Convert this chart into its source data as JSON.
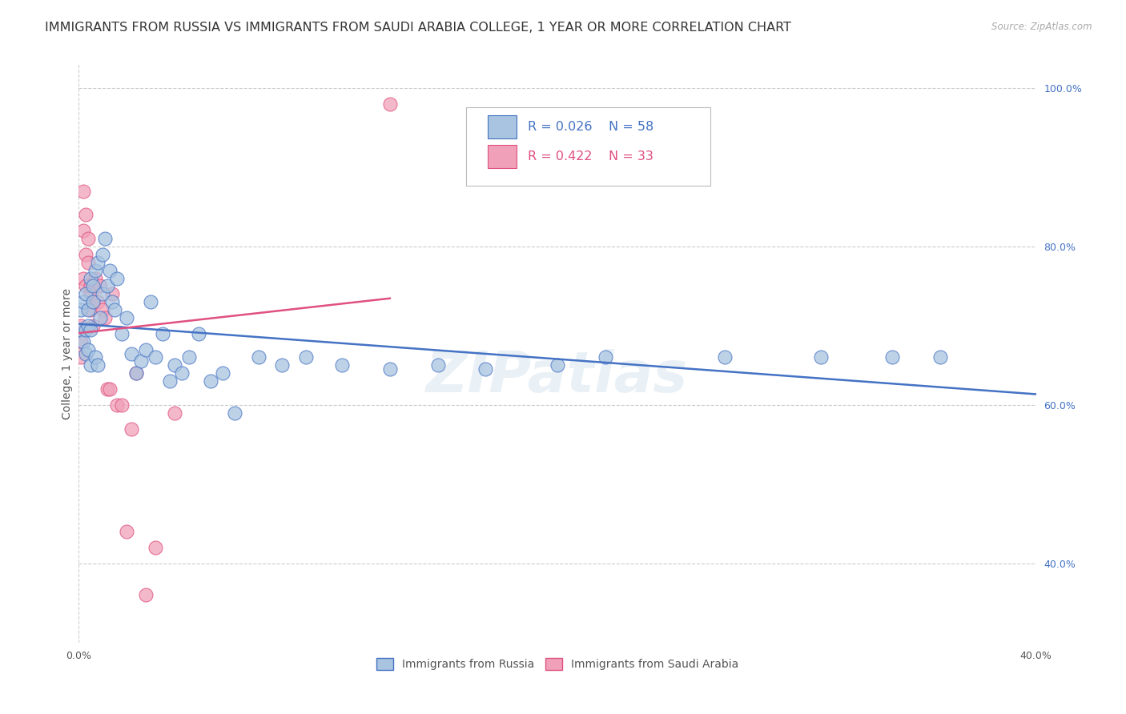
{
  "title": "IMMIGRANTS FROM RUSSIA VS IMMIGRANTS FROM SAUDI ARABIA COLLEGE, 1 YEAR OR MORE CORRELATION CHART",
  "source": "Source: ZipAtlas.com",
  "ylabel": "College, 1 year or more",
  "xlim": [
    0.0,
    0.4
  ],
  "ylim": [
    0.3,
    1.03
  ],
  "xticks": [
    0.0,
    0.05,
    0.1,
    0.15,
    0.2,
    0.25,
    0.3,
    0.35,
    0.4
  ],
  "xticklabels": [
    "0.0%",
    "",
    "",
    "",
    "",
    "",
    "",
    "",
    "40.0%"
  ],
  "yticks_right": [
    1.0,
    0.8,
    0.6,
    0.4
  ],
  "yticklabels_right": [
    "100.0%",
    "80.0%",
    "60.0%",
    "40.0%"
  ],
  "color_russia": "#a8c4e0",
  "color_saudi": "#f0a0b8",
  "line_color_russia": "#4472c4",
  "line_color_saudi": "#e05080",
  "watermark": "ZIPatlas",
  "russia_x": [
    0.001,
    0.001,
    0.002,
    0.002,
    0.003,
    0.003,
    0.003,
    0.004,
    0.004,
    0.004,
    0.005,
    0.005,
    0.005,
    0.006,
    0.006,
    0.007,
    0.007,
    0.008,
    0.008,
    0.009,
    0.01,
    0.01,
    0.011,
    0.012,
    0.013,
    0.014,
    0.015,
    0.016,
    0.018,
    0.02,
    0.022,
    0.024,
    0.026,
    0.028,
    0.03,
    0.032,
    0.035,
    0.038,
    0.04,
    0.043,
    0.046,
    0.05,
    0.055,
    0.06,
    0.065,
    0.075,
    0.085,
    0.095,
    0.11,
    0.13,
    0.15,
    0.17,
    0.2,
    0.22,
    0.27,
    0.31,
    0.34,
    0.36
  ],
  "russia_y": [
    0.695,
    0.72,
    0.73,
    0.68,
    0.74,
    0.695,
    0.665,
    0.72,
    0.7,
    0.67,
    0.76,
    0.695,
    0.65,
    0.75,
    0.73,
    0.77,
    0.66,
    0.78,
    0.65,
    0.71,
    0.79,
    0.74,
    0.81,
    0.75,
    0.77,
    0.73,
    0.72,
    0.76,
    0.69,
    0.71,
    0.665,
    0.64,
    0.655,
    0.67,
    0.73,
    0.66,
    0.69,
    0.63,
    0.65,
    0.64,
    0.66,
    0.69,
    0.63,
    0.64,
    0.59,
    0.66,
    0.65,
    0.66,
    0.65,
    0.645,
    0.65,
    0.645,
    0.65,
    0.66,
    0.66,
    0.66,
    0.66,
    0.66
  ],
  "saudi_x": [
    0.001,
    0.001,
    0.001,
    0.002,
    0.002,
    0.002,
    0.003,
    0.003,
    0.003,
    0.004,
    0.004,
    0.005,
    0.005,
    0.005,
    0.006,
    0.006,
    0.007,
    0.008,
    0.009,
    0.01,
    0.011,
    0.012,
    0.013,
    0.014,
    0.016,
    0.018,
    0.02,
    0.022,
    0.024,
    0.028,
    0.032,
    0.04,
    0.13
  ],
  "saudi_y": [
    0.7,
    0.68,
    0.66,
    0.76,
    0.82,
    0.87,
    0.79,
    0.84,
    0.75,
    0.81,
    0.78,
    0.74,
    0.72,
    0.75,
    0.73,
    0.7,
    0.76,
    0.73,
    0.75,
    0.72,
    0.71,
    0.62,
    0.62,
    0.74,
    0.6,
    0.6,
    0.44,
    0.57,
    0.64,
    0.36,
    0.42,
    0.59,
    0.98
  ],
  "background_color": "#ffffff",
  "grid_color": "#cccccc",
  "title_fontsize": 11.5,
  "axis_label_fontsize": 10,
  "tick_fontsize": 9,
  "marker_size": 150
}
